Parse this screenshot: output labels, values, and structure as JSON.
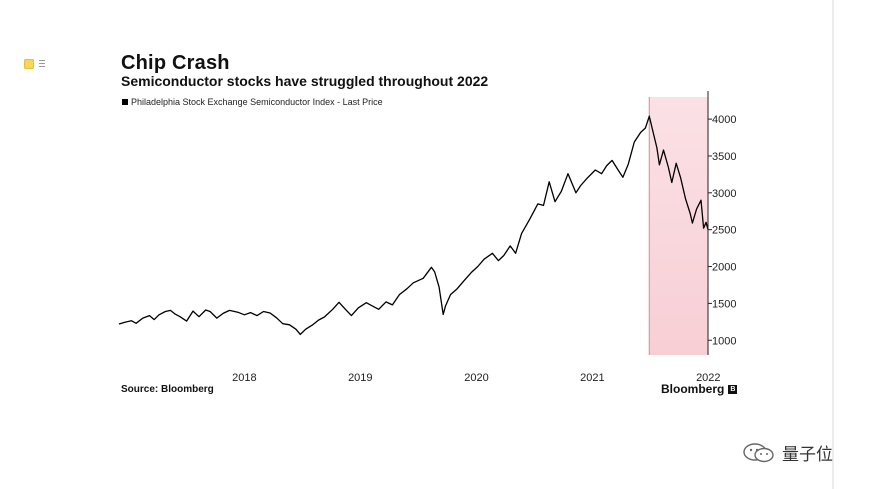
{
  "toolbar": {
    "icons": [
      "note-icon",
      "list-icon"
    ]
  },
  "watermark": {
    "text": "量子位",
    "icon": "wechat-icon"
  },
  "brand": {
    "name": "Bloomberg",
    "mark": "B"
  },
  "source": "Source: Bloomberg",
  "colors": {
    "line": "#000000",
    "highlight": "#f7c9d0"
  },
  "chart_data": {
    "type": "line",
    "title": "Chip Crash",
    "subtitle": "Semiconductor stocks have struggled throughout 2022",
    "xlabel": "",
    "ylabel": "",
    "y_axis_side": "right",
    "grid": false,
    "xlim": [
      "2017-06-01",
      "2022-06-30"
    ],
    "ylim": [
      800,
      4300
    ],
    "x_ticks": [
      "2018",
      "2019",
      "2020",
      "2021",
      "2022"
    ],
    "x_tick_values": [
      "2018-07-01",
      "2019-07-01",
      "2020-07-01",
      "2021-07-01",
      "2022-07-01"
    ],
    "y_ticks": [
      1000,
      1500,
      2000,
      2500,
      3000,
      3500,
      4000
    ],
    "highlight_region": {
      "from": "2021-12-27",
      "to": "2022-06-30"
    },
    "series": [
      {
        "name": "Philadelphia Stock Exchange Semiconductor Index - Last Price",
        "points": [
          [
            "2017-06-01",
            1220
          ],
          [
            "2017-06-20",
            1245
          ],
          [
            "2017-07-10",
            1265
          ],
          [
            "2017-07-25",
            1230
          ],
          [
            "2017-08-15",
            1300
          ],
          [
            "2017-09-05",
            1335
          ],
          [
            "2017-09-20",
            1280
          ],
          [
            "2017-10-05",
            1345
          ],
          [
            "2017-10-25",
            1390
          ],
          [
            "2017-11-10",
            1405
          ],
          [
            "2017-11-25",
            1355
          ],
          [
            "2017-12-10",
            1320
          ],
          [
            "2017-12-31",
            1260
          ],
          [
            "2018-01-20",
            1395
          ],
          [
            "2018-02-08",
            1320
          ],
          [
            "2018-03-01",
            1410
          ],
          [
            "2018-03-15",
            1390
          ],
          [
            "2018-04-05",
            1300
          ],
          [
            "2018-04-25",
            1365
          ],
          [
            "2018-05-15",
            1405
          ],
          [
            "2018-06-10",
            1380
          ],
          [
            "2018-07-01",
            1345
          ],
          [
            "2018-07-20",
            1375
          ],
          [
            "2018-08-10",
            1335
          ],
          [
            "2018-08-30",
            1390
          ],
          [
            "2018-09-20",
            1370
          ],
          [
            "2018-10-10",
            1305
          ],
          [
            "2018-10-30",
            1225
          ],
          [
            "2018-11-20",
            1210
          ],
          [
            "2018-12-10",
            1150
          ],
          [
            "2018-12-24",
            1080
          ],
          [
            "2019-01-10",
            1150
          ],
          [
            "2019-02-01",
            1210
          ],
          [
            "2019-02-20",
            1275
          ],
          [
            "2019-03-10",
            1315
          ],
          [
            "2019-04-05",
            1420
          ],
          [
            "2019-04-25",
            1515
          ],
          [
            "2019-05-15",
            1420
          ],
          [
            "2019-06-03",
            1335
          ],
          [
            "2019-06-25",
            1440
          ],
          [
            "2019-07-20",
            1510
          ],
          [
            "2019-08-10",
            1460
          ],
          [
            "2019-08-28",
            1420
          ],
          [
            "2019-09-20",
            1520
          ],
          [
            "2019-10-10",
            1480
          ],
          [
            "2019-11-01",
            1620
          ],
          [
            "2019-11-25",
            1700
          ],
          [
            "2019-12-15",
            1780
          ],
          [
            "2020-01-15",
            1840
          ],
          [
            "2020-02-10",
            1990
          ],
          [
            "2020-02-20",
            1930
          ],
          [
            "2020-03-05",
            1720
          ],
          [
            "2020-03-18",
            1350
          ],
          [
            "2020-03-25",
            1460
          ],
          [
            "2020-04-10",
            1620
          ],
          [
            "2020-05-01",
            1700
          ],
          [
            "2020-05-25",
            1820
          ],
          [
            "2020-06-15",
            1920
          ],
          [
            "2020-07-05",
            2000
          ],
          [
            "2020-07-25",
            2100
          ],
          [
            "2020-08-20",
            2180
          ],
          [
            "2020-09-08",
            2080
          ],
          [
            "2020-09-25",
            2150
          ],
          [
            "2020-10-15",
            2280
          ],
          [
            "2020-11-01",
            2180
          ],
          [
            "2020-11-20",
            2450
          ],
          [
            "2020-12-15",
            2640
          ],
          [
            "2021-01-10",
            2850
          ],
          [
            "2021-01-28",
            2830
          ],
          [
            "2021-02-15",
            3150
          ],
          [
            "2021-03-05",
            2880
          ],
          [
            "2021-03-25",
            3020
          ],
          [
            "2021-04-15",
            3260
          ],
          [
            "2021-05-10",
            3000
          ],
          [
            "2021-05-25",
            3100
          ],
          [
            "2021-06-15",
            3200
          ],
          [
            "2021-07-10",
            3310
          ],
          [
            "2021-07-30",
            3260
          ],
          [
            "2021-08-15",
            3370
          ],
          [
            "2021-09-01",
            3440
          ],
          [
            "2021-09-20",
            3310
          ],
          [
            "2021-10-05",
            3210
          ],
          [
            "2021-10-22",
            3390
          ],
          [
            "2021-11-10",
            3690
          ],
          [
            "2021-11-30",
            3820
          ],
          [
            "2021-12-15",
            3880
          ],
          [
            "2021-12-27",
            4040
          ],
          [
            "2022-01-05",
            3880
          ],
          [
            "2022-01-20",
            3610
          ],
          [
            "2022-01-28",
            3380
          ],
          [
            "2022-02-10",
            3580
          ],
          [
            "2022-02-25",
            3350
          ],
          [
            "2022-03-08",
            3140
          ],
          [
            "2022-03-22",
            3400
          ],
          [
            "2022-04-05",
            3200
          ],
          [
            "2022-04-20",
            2920
          ],
          [
            "2022-05-05",
            2720
          ],
          [
            "2022-05-12",
            2590
          ],
          [
            "2022-05-25",
            2780
          ],
          [
            "2022-06-08",
            2900
          ],
          [
            "2022-06-16",
            2520
          ],
          [
            "2022-06-24",
            2600
          ],
          [
            "2022-06-30",
            2500
          ]
        ]
      }
    ]
  }
}
